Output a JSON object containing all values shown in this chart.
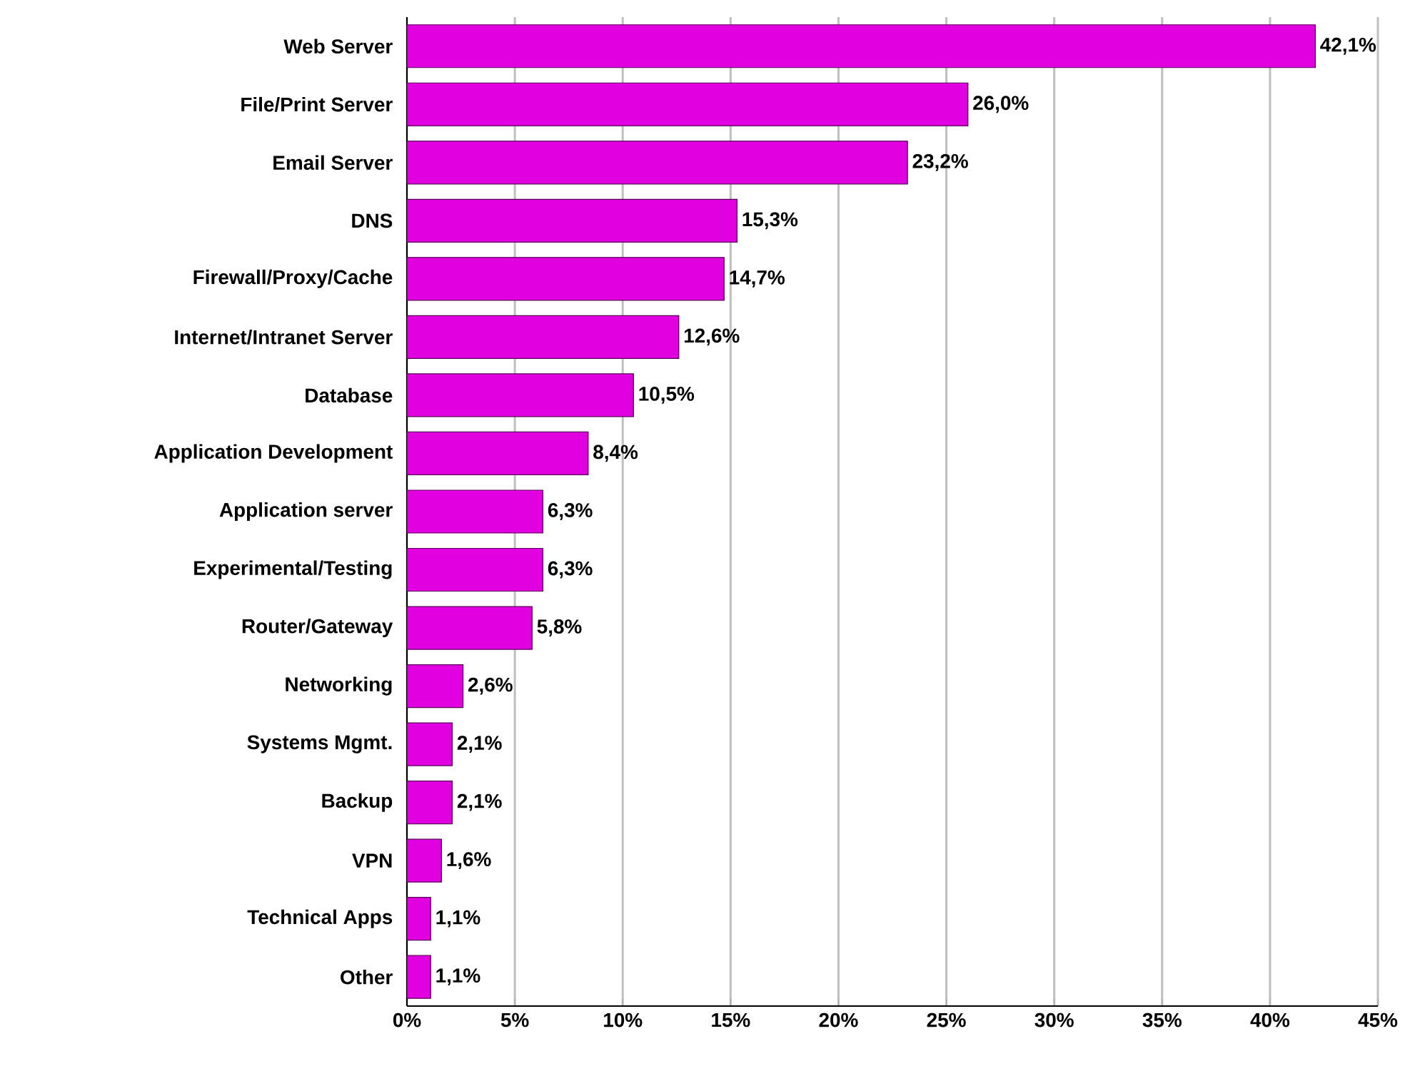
{
  "chart_data": {
    "type": "bar",
    "orientation": "horizontal",
    "categories": [
      "Web Server",
      "File/Print Server",
      "Email Server",
      "DNS",
      "Firewall/Proxy/Cache",
      "Internet/Intranet Server",
      "Database",
      "Application Development",
      "Application server",
      "Experimental/Testing",
      "Router/Gateway",
      "Networking",
      "Systems Mgmt.",
      "Backup",
      "VPN",
      "Technical Apps",
      "Other"
    ],
    "values": [
      42.1,
      26.0,
      23.2,
      15.3,
      14.7,
      12.6,
      10.5,
      8.4,
      6.3,
      6.3,
      5.8,
      2.6,
      2.1,
      2.1,
      1.6,
      1.1,
      1.1
    ],
    "value_labels": [
      "42,1%",
      "26,0%",
      "23,2%",
      "15,3%",
      "14,7%",
      "12,6%",
      "10,5%",
      "8,4%",
      "6,3%",
      "6,3%",
      "5,8%",
      "2,6%",
      "2,1%",
      "2,1%",
      "1,6%",
      "1,1%",
      "1,1%"
    ],
    "color": "#e000e0",
    "xlim": [
      0,
      45
    ],
    "xticks": [
      {
        "value": 0,
        "label": "0%"
      },
      {
        "value": 5,
        "label": "5%"
      },
      {
        "value": 10,
        "label": "10%"
      },
      {
        "value": 15,
        "label": "15%"
      },
      {
        "value": 20,
        "label": "20%"
      },
      {
        "value": 25,
        "label": "25%"
      },
      {
        "value": 30,
        "label": "30%"
      },
      {
        "value": 35,
        "label": "35%"
      },
      {
        "value": 40,
        "label": "40%"
      },
      {
        "value": 45,
        "label": "45%"
      }
    ],
    "grid": "x"
  }
}
